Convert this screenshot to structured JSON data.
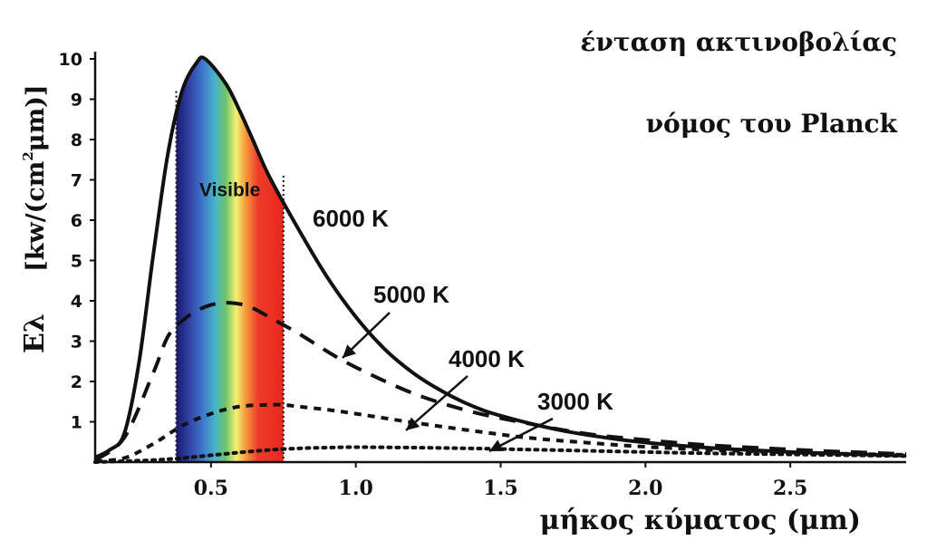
{
  "chart_data": {
    "type": "line",
    "title": "ένταση ακτινοβολίας",
    "subtitle": "νόμος του Planck",
    "xlabel": "μήκος κύματος (μm)",
    "ylabel": "Eλ",
    "ylabel_units_prefix": "[kw/(cm",
    "ylabel_units_sup": "2",
    "ylabel_units_suffix": "μm)]",
    "xlim": [
      0.1,
      2.9
    ],
    "ylim": [
      0,
      10
    ],
    "x_ticks": [
      0.5,
      1.0,
      1.5,
      2.0,
      2.5
    ],
    "x_tick_labels": [
      "0.5",
      "1.0",
      "1.5",
      "2.0",
      "2.5"
    ],
    "y_ticks": [
      1,
      2,
      3,
      4,
      5,
      6,
      7,
      8,
      9,
      10
    ],
    "y_tick_labels": [
      "1",
      "2",
      "3",
      "4",
      "5",
      "6",
      "7",
      "8",
      "9",
      "10"
    ],
    "grid": false,
    "visible_band": {
      "label": "Visible",
      "x_range": [
        0.38,
        0.75
      ]
    },
    "series": [
      {
        "name": "6000 K",
        "style": "solid",
        "x": [
          0.1,
          0.15,
          0.2,
          0.25,
          0.3,
          0.35,
          0.4,
          0.45,
          0.48,
          0.55,
          0.6,
          0.65,
          0.7,
          0.8,
          0.9,
          1.0,
          1.1,
          1.2,
          1.3,
          1.4,
          1.5,
          1.7,
          1.9,
          2.1,
          2.3,
          2.5,
          2.7,
          2.9
        ],
        "y": [
          0.12,
          0.3,
          0.7,
          2.4,
          5.1,
          7.6,
          9.2,
          9.9,
          10.0,
          9.4,
          8.7,
          7.9,
          7.1,
          5.8,
          4.6,
          3.6,
          2.8,
          2.2,
          1.75,
          1.4,
          1.15,
          0.8,
          0.57,
          0.42,
          0.32,
          0.25,
          0.2,
          0.16
        ]
      },
      {
        "name": "5000 K",
        "style": "dashed",
        "x": [
          0.1,
          0.2,
          0.3,
          0.35,
          0.4,
          0.45,
          0.5,
          0.55,
          0.6,
          0.65,
          0.7,
          0.8,
          0.9,
          1.0,
          1.2,
          1.4,
          1.6,
          1.8,
          2.0,
          2.2,
          2.4,
          2.6,
          2.9
        ],
        "y": [
          0.05,
          0.6,
          2.2,
          3.1,
          3.5,
          3.75,
          3.9,
          3.95,
          3.92,
          3.8,
          3.6,
          3.2,
          2.75,
          2.35,
          1.7,
          1.25,
          0.95,
          0.7,
          0.55,
          0.43,
          0.35,
          0.28,
          0.2
        ]
      },
      {
        "name": "4000 K",
        "style": "short-dashed",
        "x": [
          0.1,
          0.2,
          0.3,
          0.4,
          0.5,
          0.6,
          0.7,
          0.75,
          0.8,
          0.9,
          1.0,
          1.2,
          1.4,
          1.6,
          1.8,
          2.0,
          2.2,
          2.4,
          2.6,
          2.9
        ],
        "y": [
          0.02,
          0.1,
          0.45,
          0.9,
          1.2,
          1.38,
          1.42,
          1.42,
          1.38,
          1.3,
          1.2,
          0.98,
          0.78,
          0.6,
          0.48,
          0.38,
          0.31,
          0.26,
          0.22,
          0.18
        ]
      },
      {
        "name": "3000 K",
        "style": "dotted",
        "x": [
          0.1,
          0.3,
          0.4,
          0.5,
          0.6,
          0.7,
          0.8,
          0.9,
          1.0,
          1.2,
          1.4,
          1.6,
          1.8,
          2.0,
          2.2,
          2.5,
          2.9
        ],
        "y": [
          0.0,
          0.05,
          0.1,
          0.17,
          0.24,
          0.3,
          0.34,
          0.36,
          0.37,
          0.36,
          0.34,
          0.31,
          0.28,
          0.25,
          0.22,
          0.19,
          0.15
        ]
      }
    ],
    "annotations": [
      {
        "text": "6000 K",
        "series": "6000 K"
      },
      {
        "text": "5000 K",
        "series": "5000 K"
      },
      {
        "text": "4000 K",
        "series": "4000 K"
      },
      {
        "text": "3000 K",
        "series": "3000 K"
      }
    ]
  }
}
